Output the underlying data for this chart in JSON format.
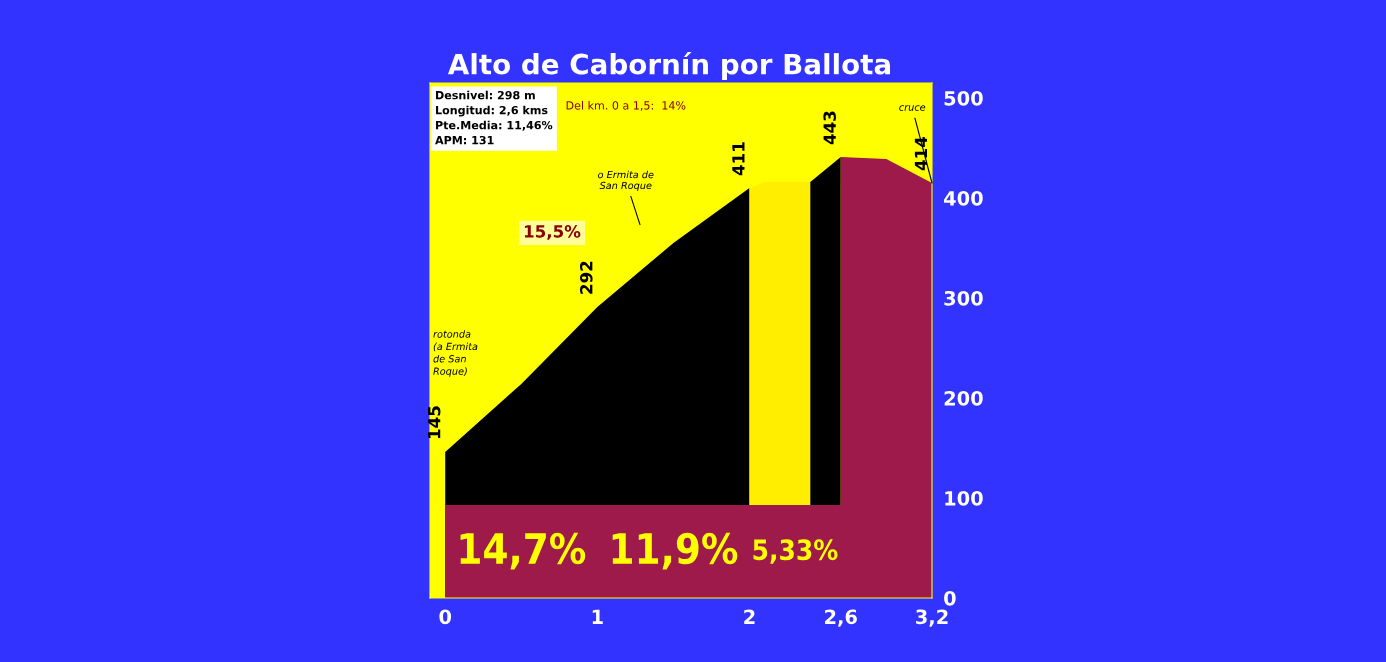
{
  "chart_data": {
    "type": "area",
    "title": "Alto de Cabornín por Ballota",
    "series": [
      {
        "color": "#000000",
        "x": [
          0,
          0.5,
          1,
          1.5,
          2
        ],
        "values": [
          146,
          214,
          291,
          355,
          410
        ]
      },
      {
        "color": "#ffee00",
        "x": [
          2,
          2.1,
          2.4
        ],
        "values": [
          410,
          416,
          416
        ]
      },
      {
        "color": "#000000",
        "x": [
          2.4,
          2.6
        ],
        "values": [
          416,
          441
        ]
      },
      {
        "color": "#9e1a4a",
        "x": [
          2.6,
          2.9,
          3.2
        ],
        "values": [
          441,
          439,
          415
        ]
      }
    ],
    "bands": [
      {
        "axis": "y",
        "from": 0,
        "to": 93,
        "color": "#9e1a4a"
      }
    ],
    "xlim": [
      -0.1,
      3.2
    ],
    "xticks": [
      0,
      1,
      2,
      {
        "value": 2.6,
        "label": "2,6"
      },
      {
        "value": 3.2,
        "label": "3,2"
      }
    ],
    "ylim": [
      0,
      515
    ],
    "yticks": [
      0,
      100,
      200,
      300,
      400,
      500
    ],
    "grid": false,
    "legend": false,
    "annotations": [
      "Desnivel: 298 m\nLongitud: 2,6 kms\nPte.Media: 11,46%\nAPM: 131",
      "Del km. 0 a 1,5:  14%",
      "15,5%",
      "14,7%",
      "11,9%",
      "5,33%",
      "o Ermita de\nSan Roque",
      {
        "text": "145",
        "x": 0,
        "y": 146
      },
      {
        "text": "292",
        "x": 1,
        "y": 291
      },
      {
        "text": "411",
        "x": 2,
        "y": 410
      },
      {
        "text": "443",
        "x": 2.6,
        "y": 441
      },
      {
        "text": "414",
        "x": 3.2,
        "y": 415
      },
      "rotonda\n(a Ermita\nde San\nRoque)",
      {
        "text": "cruce",
        "x": 3.2,
        "y": 415
      }
    ]
  }
}
